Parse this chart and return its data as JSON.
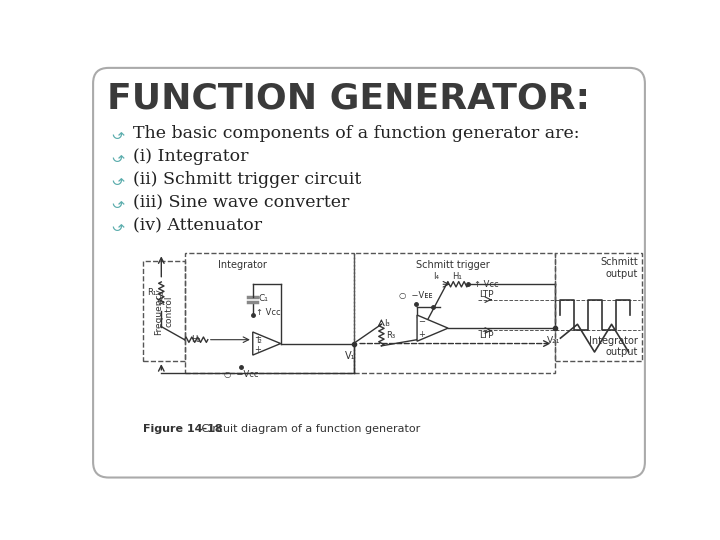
{
  "title": "FUNCTION GENERATOR:",
  "title_color": "#3a3a3a",
  "title_fontsize": 26,
  "background_color": "#ffffff",
  "bullet_color": "#5badad",
  "bullet_text_color": "#222222",
  "bullet_fontsize": 12.5,
  "bullets": [
    "The basic components of a function generator are:",
    "(i) Integrator",
    "(ii) Schmitt trigger circuit",
    "(iii) Sine wave converter",
    "(iv) Attenuator"
  ],
  "figure_caption_bold": "Figure 14-18",
  "figure_caption_rest": "   Circuit diagram of a function generator",
  "border_color": "#aaaaaa"
}
